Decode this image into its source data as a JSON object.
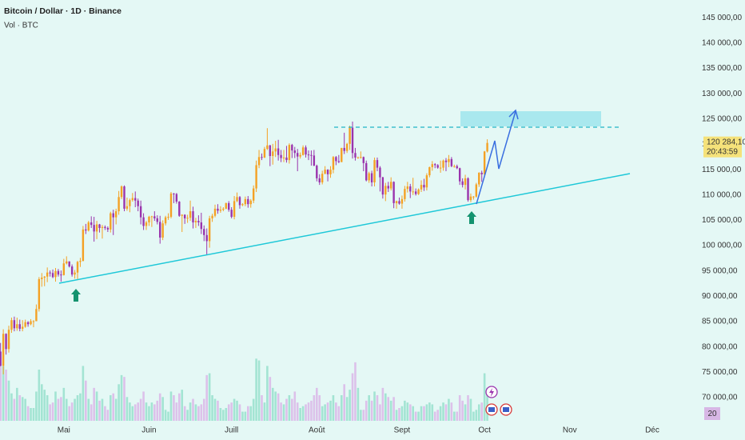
{
  "chart_data": {
    "type": "candlestick",
    "title": "Bitcoin / Dollar · 1D · Binance",
    "subtitle": "Vol · BTC",
    "up_color": "#f4a124",
    "down_color": "#9a34ad",
    "volume_up_color": "#a3e4d3",
    "volume_down_color": "#dcc1ea",
    "ylim": [
      64800,
      148500
    ],
    "yticks": [
      {
        "value": 70000,
        "label": "70 000,00"
      },
      {
        "value": 75000,
        "label": "75 000,00"
      },
      {
        "value": 80000,
        "label": "80 000,00"
      },
      {
        "value": 85000,
        "label": "85 000,00"
      },
      {
        "value": 90000,
        "label": "90 000,00"
      },
      {
        "value": 95000,
        "label": "95 000,00"
      },
      {
        "value": 100000,
        "label": "100 000,00"
      },
      {
        "value": 105000,
        "label": "105 000,00"
      },
      {
        "value": 110000,
        "label": "110 000,00"
      },
      {
        "value": 115000,
        "label": "115 000,00"
      },
      {
        "value": 120000,
        "label": "120 000,00"
      },
      {
        "value": 125000,
        "label": "125 000,00"
      },
      {
        "value": 130000,
        "label": "130 000,00"
      },
      {
        "value": 135000,
        "label": "135 000,00"
      },
      {
        "value": 140000,
        "label": "140 000,00"
      },
      {
        "value": 145000,
        "label": "145 000,00"
      }
    ],
    "xlim": [
      -0.2,
      252.7
    ],
    "xticks": [
      {
        "value": 23,
        "label": "Mai"
      },
      {
        "value": 54,
        "label": "Juin"
      },
      {
        "value": 84,
        "label": "Juill"
      },
      {
        "value": 115,
        "label": "Août"
      },
      {
        "value": 146,
        "label": "Sept"
      },
      {
        "value": 176,
        "label": "Oct"
      },
      {
        "value": 207,
        "label": "Nov"
      },
      {
        "value": 237,
        "label": "Déc"
      }
    ],
    "last_price": {
      "value": 120284.1,
      "label": "120 284,10"
    },
    "countdown": "20:43:59",
    "volume_label": "20",
    "candles": [
      [
        79100,
        80800,
        76200,
        76300
      ],
      [
        76300,
        83500,
        74600,
        82600
      ],
      [
        82600,
        82700,
        78500,
        79600
      ],
      [
        79600,
        84200,
        78900,
        83400
      ],
      [
        83400,
        85800,
        82800,
        85300
      ],
      [
        85300,
        86000,
        83100,
        83700
      ],
      [
        83700,
        85800,
        83200,
        84500
      ],
      [
        84500,
        85400,
        83100,
        83600
      ],
      [
        83600,
        85300,
        83100,
        84000
      ],
      [
        84000,
        85400,
        83800,
        84900
      ],
      [
        84900,
        85100,
        84000,
        84500
      ],
      [
        84500,
        85500,
        84300,
        85100
      ],
      [
        85100,
        85300,
        83900,
        85100
      ],
      [
        85100,
        88400,
        85100,
        87500
      ],
      [
        87500,
        93800,
        87000,
        93400
      ],
      [
        93400,
        94600,
        91900,
        93700
      ],
      [
        93700,
        94000,
        92000,
        93900
      ],
      [
        93900,
        95700,
        92800,
        94700
      ],
      [
        94700,
        95100,
        93900,
        94600
      ],
      [
        94600,
        95300,
        93600,
        93800
      ],
      [
        93800,
        95600,
        92900,
        95000
      ],
      [
        95000,
        95400,
        93900,
        94300
      ],
      [
        94300,
        95100,
        92900,
        94200
      ],
      [
        94200,
        97400,
        94100,
        96500
      ],
      [
        96500,
        97900,
        96300,
        96900
      ],
      [
        96900,
        96900,
        95700,
        95900
      ],
      [
        95900,
        96300,
        93900,
        94300
      ],
      [
        94300,
        95200,
        93500,
        94700
      ],
      [
        94700,
        97000,
        93400,
        96800
      ],
      [
        96800,
        97600,
        95800,
        97000
      ],
      [
        97000,
        103900,
        96900,
        103200
      ],
      [
        103200,
        104300,
        102300,
        103000
      ],
      [
        103000,
        104900,
        102800,
        104600
      ],
      [
        104600,
        105800,
        103500,
        104100
      ],
      [
        104100,
        105700,
        100800,
        102800
      ],
      [
        102800,
        104900,
        101300,
        104200
      ],
      [
        104200,
        104300,
        102600,
        103500
      ],
      [
        103500,
        104100,
        101400,
        103700
      ],
      [
        103700,
        104000,
        103100,
        103500
      ],
      [
        103500,
        103800,
        102700,
        103200
      ],
      [
        103200,
        106700,
        102600,
        106400
      ],
      [
        106400,
        107100,
        102100,
        105600
      ],
      [
        105600,
        107300,
        104200,
        106800
      ],
      [
        106800,
        110800,
        106100,
        109600
      ],
      [
        109600,
        111900,
        109200,
        111700
      ],
      [
        111700,
        111900,
        106800,
        107300
      ],
      [
        107300,
        109500,
        106900,
        107800
      ],
      [
        107800,
        109300,
        106600,
        109000
      ],
      [
        109000,
        110400,
        108700,
        109400
      ],
      [
        109400,
        110700,
        107600,
        108900
      ],
      [
        108900,
        109300,
        106800,
        107800
      ],
      [
        107800,
        108900,
        104200,
        105600
      ],
      [
        105600,
        106400,
        103100,
        103900
      ],
      [
        103900,
        104900,
        103100,
        104600
      ],
      [
        104600,
        105900,
        103900,
        105700
      ],
      [
        105700,
        105900,
        103700,
        105800
      ],
      [
        105800,
        106800,
        104900,
        105400
      ],
      [
        105400,
        106000,
        104200,
        104700
      ],
      [
        104700,
        105900,
        100400,
        101600
      ],
      [
        101600,
        105000,
        101100,
        104400
      ],
      [
        104400,
        105900,
        104000,
        105600
      ],
      [
        105600,
        106400,
        105100,
        105700
      ],
      [
        105700,
        110600,
        105400,
        110300
      ],
      [
        110300,
        110400,
        108400,
        110200
      ],
      [
        110200,
        110400,
        108300,
        108700
      ],
      [
        108700,
        108800,
        105700,
        105900
      ],
      [
        105900,
        106200,
        102700,
        106100
      ],
      [
        106100,
        106200,
        104300,
        105400
      ],
      [
        105400,
        106100,
        104500,
        105500
      ],
      [
        105500,
        108900,
        104900,
        106800
      ],
      [
        106800,
        107700,
        103400,
        104600
      ],
      [
        104600,
        105500,
        103500,
        104900
      ],
      [
        104900,
        106000,
        103900,
        104600
      ],
      [
        104600,
        106500,
        102300,
        103300
      ],
      [
        103300,
        104000,
        100900,
        102100
      ],
      [
        102100,
        103400,
        98200,
        100900
      ],
      [
        100900,
        105900,
        99600,
        105400
      ],
      [
        105400,
        106300,
        104700,
        105900
      ],
      [
        105900,
        108100,
        105600,
        107300
      ],
      [
        107300,
        108200,
        106300,
        106900
      ],
      [
        106900,
        107800,
        106500,
        107100
      ],
      [
        107100,
        107600,
        106800,
        107300
      ],
      [
        107300,
        108500,
        107200,
        108400
      ],
      [
        108400,
        108800,
        106700,
        107100
      ],
      [
        107100,
        107600,
        105400,
        105700
      ],
      [
        105700,
        109800,
        105200,
        108800
      ],
      [
        108800,
        110500,
        108600,
        109600
      ],
      [
        109600,
        109800,
        107300,
        108000
      ],
      [
        108000,
        108400,
        107800,
        108200
      ],
      [
        108200,
        109700,
        107800,
        109200
      ],
      [
        109200,
        109800,
        107500,
        108200
      ],
      [
        108200,
        109200,
        107500,
        108900
      ],
      [
        108900,
        111900,
        108400,
        111300
      ],
      [
        111300,
        116800,
        110600,
        115900
      ],
      [
        115900,
        118900,
        115300,
        117500
      ],
      [
        117500,
        118200,
        116900,
        117400
      ],
      [
        117400,
        119500,
        117300,
        119100
      ],
      [
        119100,
        123200,
        118900,
        119800
      ],
      [
        119800,
        119900,
        115700,
        117700
      ],
      [
        117700,
        120100,
        116000,
        118600
      ],
      [
        118600,
        120700,
        117500,
        119200
      ],
      [
        119200,
        120900,
        116800,
        117900
      ],
      [
        117900,
        118900,
        116500,
        117300
      ],
      [
        117300,
        118900,
        116500,
        117400
      ],
      [
        117400,
        119700,
        116400,
        116900
      ],
      [
        116900,
        120200,
        116200,
        119900
      ],
      [
        119900,
        120100,
        117300,
        118800
      ],
      [
        118800,
        119500,
        117300,
        118300
      ],
      [
        118300,
        119100,
        114700,
        117600
      ],
      [
        117600,
        118400,
        117200,
        117900
      ],
      [
        117900,
        119800,
        117800,
        119400
      ],
      [
        119400,
        119800,
        117400,
        118000
      ],
      [
        118000,
        118800,
        116900,
        117900
      ],
      [
        117900,
        118800,
        115800,
        117800
      ],
      [
        117800,
        118900,
        115700,
        115800
      ],
      [
        115800,
        116000,
        112700,
        113300
      ],
      [
        113300,
        114100,
        112000,
        112500
      ],
      [
        112500,
        114800,
        112100,
        114200
      ],
      [
        114200,
        115700,
        114100,
        115000
      ],
      [
        115000,
        115100,
        112700,
        114100
      ],
      [
        114100,
        115700,
        113400,
        115000
      ],
      [
        115000,
        117700,
        114300,
        117500
      ],
      [
        117500,
        117700,
        115900,
        116700
      ],
      [
        116700,
        117900,
        116300,
        116500
      ],
      [
        116500,
        119300,
        116500,
        119300
      ],
      [
        119300,
        122300,
        118100,
        118700
      ],
      [
        118700,
        120300,
        118300,
        120100
      ],
      [
        120100,
        123700,
        118900,
        123300
      ],
      [
        123300,
        124500,
        117200,
        118300
      ],
      [
        118300,
        119300,
        116800,
        117400
      ],
      [
        117400,
        117600,
        117200,
        117400
      ],
      [
        117400,
        118600,
        117200,
        117500
      ],
      [
        117500,
        117600,
        114700,
        116300
      ],
      [
        116300,
        116800,
        112700,
        112900
      ],
      [
        112900,
        114600,
        112400,
        114300
      ],
      [
        114300,
        114800,
        111700,
        112500
      ],
      [
        112500,
        117400,
        111700,
        116900
      ],
      [
        116900,
        117400,
        114700,
        115400
      ],
      [
        115400,
        115700,
        110700,
        113500
      ],
      [
        113500,
        113600,
        109300,
        110100
      ],
      [
        110100,
        112400,
        108800,
        111800
      ],
      [
        111800,
        112600,
        110600,
        111300
      ],
      [
        111300,
        113500,
        110900,
        112600
      ],
      [
        112600,
        112700,
        107400,
        108400
      ],
      [
        108400,
        108900,
        107300,
        108800
      ],
      [
        108800,
        109500,
        108100,
        108300
      ],
      [
        108300,
        109900,
        107300,
        109200
      ],
      [
        109200,
        111800,
        108700,
        111200
      ],
      [
        111200,
        112600,
        110500,
        111700
      ],
      [
        111700,
        112200,
        109400,
        110700
      ],
      [
        110700,
        113400,
        110000,
        110700
      ],
      [
        110700,
        111300,
        109900,
        110200
      ],
      [
        110200,
        111300,
        110000,
        111100
      ],
      [
        111100,
        112900,
        110600,
        112000
      ],
      [
        112000,
        113200,
        110800,
        111500
      ],
      [
        111500,
        114300,
        110900,
        113900
      ],
      [
        113900,
        115600,
        113500,
        115500
      ],
      [
        115500,
        116700,
        114800,
        116100
      ],
      [
        116100,
        116300,
        115300,
        115900
      ],
      [
        115900,
        116100,
        115200,
        115400
      ],
      [
        115400,
        116800,
        114400,
        115400
      ],
      [
        115400,
        117000,
        114800,
        116800
      ],
      [
        116800,
        117300,
        114700,
        116500
      ],
      [
        116500,
        117900,
        115500,
        117100
      ],
      [
        117100,
        117500,
        115500,
        115700
      ],
      [
        115700,
        116000,
        115400,
        115700
      ],
      [
        115700,
        116000,
        115100,
        115300
      ],
      [
        115300,
        115400,
        112000,
        112700
      ],
      [
        112700,
        113300,
        111500,
        112000
      ],
      [
        112000,
        114000,
        111100,
        113300
      ],
      [
        113300,
        113500,
        108700,
        109000
      ],
      [
        109000,
        110300,
        108600,
        109700
      ],
      [
        109700,
        109800,
        109100,
        109700
      ],
      [
        109700,
        112400,
        109500,
        112100
      ],
      [
        112100,
        114500,
        111600,
        114400
      ],
      [
        114400,
        114800,
        112600,
        114100
      ],
      [
        114100,
        118700,
        113900,
        118600
      ],
      [
        118600,
        121000,
        118400,
        120284.1
      ]
    ],
    "volumes": [
      35,
      30,
      28,
      22,
      15,
      12,
      18,
      14,
      13,
      12,
      8,
      7,
      7,
      16,
      28,
      20,
      17,
      14,
      9,
      10,
      16,
      12,
      13,
      18,
      12,
      8,
      10,
      12,
      14,
      15,
      30,
      22,
      12,
      9,
      18,
      16,
      11,
      12,
      8,
      6,
      14,
      15,
      12,
      20,
      25,
      24,
      13,
      10,
      8,
      9,
      10,
      12,
      16,
      10,
      8,
      10,
      9,
      11,
      15,
      13,
      6,
      5,
      16,
      14,
      10,
      15,
      17,
      8,
      6,
      10,
      12,
      9,
      8,
      9,
      12,
      25,
      26,
      14,
      12,
      11,
      7,
      6,
      7,
      9,
      10,
      12,
      11,
      9,
      5,
      5,
      8,
      8,
      12,
      34,
      33,
      14,
      10,
      30,
      24,
      18,
      16,
      15,
      10,
      9,
      12,
      14,
      12,
      16,
      10,
      7,
      8,
      9,
      10,
      11,
      14,
      18,
      14,
      8,
      9,
      10,
      11,
      14,
      10,
      8,
      14,
      20,
      13,
      17,
      26,
      32,
      18,
      6,
      6,
      11,
      14,
      11,
      16,
      14,
      9,
      18,
      15,
      13,
      11,
      13,
      6,
      7,
      8,
      11,
      10,
      9,
      8,
      5,
      5,
      8,
      8,
      9,
      10,
      9,
      5,
      6,
      8,
      10,
      9,
      12,
      10,
      5,
      5,
      14,
      11,
      9,
      14,
      12,
      5,
      6,
      9,
      10,
      26,
      18
    ]
  }
}
